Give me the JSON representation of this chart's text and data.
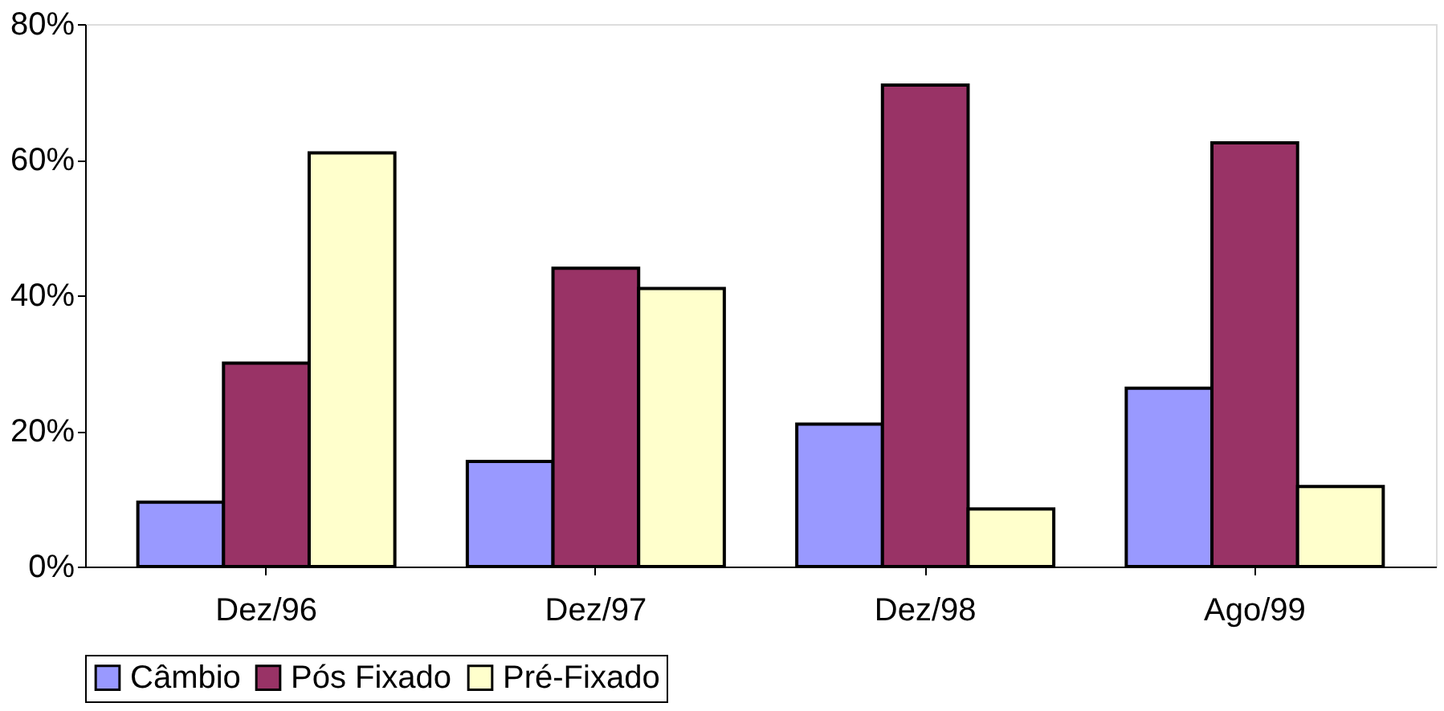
{
  "chart_data": {
    "type": "bar",
    "categories": [
      "Dez/96",
      "Dez/97",
      "Dez/98",
      "Ago/99"
    ],
    "series": [
      {
        "name": "Câmbio",
        "color": "#9999ff",
        "values": [
          9.5,
          15.5,
          21,
          26.3
        ]
      },
      {
        "name": "Pós Fixado",
        "color": "#993366",
        "values": [
          30,
          44,
          71,
          62.5
        ]
      },
      {
        "name": "Pré-Fixado",
        "color": "#ffffcc",
        "values": [
          61,
          41,
          8.5,
          11.8
        ]
      }
    ],
    "ylim": [
      0,
      80
    ],
    "yticks": [
      {
        "value": 0,
        "label": "0%"
      },
      {
        "value": 20,
        "label": "20%"
      },
      {
        "value": 40,
        "label": "40%"
      },
      {
        "value": 60,
        "label": "60%"
      },
      {
        "value": 80,
        "label": "80%"
      }
    ],
    "grid": false,
    "legend": "bottom"
  }
}
